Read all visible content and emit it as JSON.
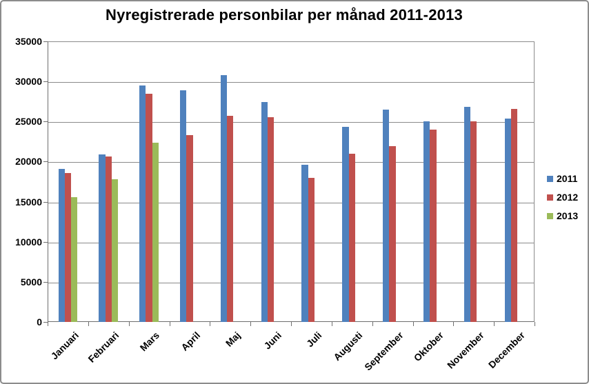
{
  "chart_data": {
    "type": "bar",
    "title": "Nyregistrerade personbilar per månad 2011-2013",
    "categories": [
      "Januari",
      "Februari",
      "Mars",
      "April",
      "Maj",
      "Juni",
      "Juli",
      "Augusti",
      "September",
      "Oktober",
      "November",
      "December"
    ],
    "series": [
      {
        "name": "2011",
        "color": "#4F81BD",
        "values": [
          19100,
          20900,
          29500,
          28900,
          30800,
          27400,
          19600,
          24300,
          26500,
          25000,
          26800,
          25400
        ]
      },
      {
        "name": "2012",
        "color": "#C0504D",
        "values": [
          18600,
          20600,
          28500,
          23300,
          25700,
          25500,
          18000,
          21000,
          21900,
          24000,
          25000,
          26600
        ]
      },
      {
        "name": "2013",
        "color": "#9BBB59",
        "values": [
          15600,
          17800,
          22400,
          null,
          null,
          null,
          null,
          null,
          null,
          null,
          null,
          null
        ]
      }
    ],
    "xlabel": "",
    "ylabel": "",
    "ylim": [
      0,
      35000
    ],
    "ytick_step": 5000,
    "yticks": [
      "35000",
      "30000",
      "25000",
      "20000",
      "15000",
      "10000",
      "5000",
      "0"
    ],
    "grid": true,
    "legend_position": "right"
  },
  "colors": {
    "background": "#FFFFFF",
    "gridline": "#8A8A8A",
    "axis": "#6E6E6E",
    "text": "#000000",
    "series_2011": "#4F81BD",
    "series_2012": "#C0504D",
    "series_2013": "#9BBB59"
  }
}
